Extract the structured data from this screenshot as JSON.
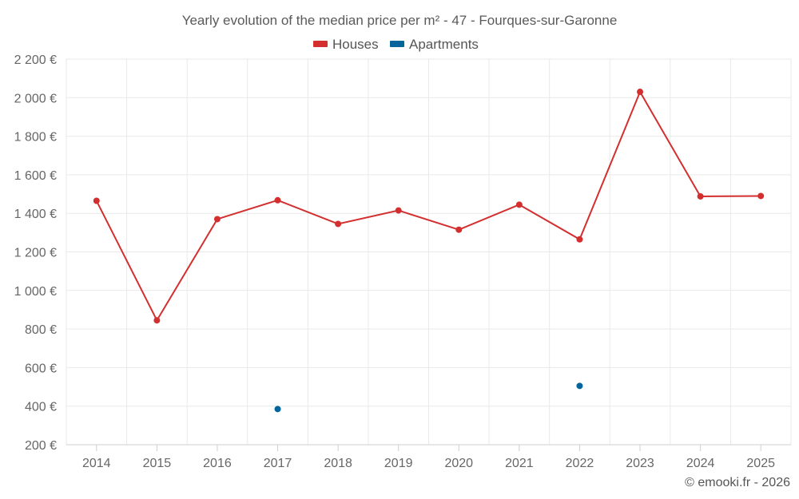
{
  "chart_data": {
    "type": "line",
    "title": "Yearly evolution of the median price per m² - 47 - Fourques-sur-Garonne",
    "categories": [
      "2014",
      "2015",
      "2016",
      "2017",
      "2018",
      "2019",
      "2020",
      "2021",
      "2022",
      "2023",
      "2024",
      "2025"
    ],
    "ylim": [
      200,
      2200
    ],
    "yticks": [
      200,
      400,
      600,
      800,
      1000,
      1200,
      1400,
      1600,
      1800,
      2000,
      2200
    ],
    "ytick_labels": [
      "200 €",
      "400 €",
      "600 €",
      "800 €",
      "1 000 €",
      "1 200 €",
      "1 400 €",
      "1 600 €",
      "1 800 €",
      "2 000 €",
      "2 200 €"
    ],
    "grid": true,
    "legend_position": "top-center",
    "series": [
      {
        "name": "Houses",
        "color": "#d32f2f",
        "values": [
          1465,
          845,
          1370,
          1468,
          1345,
          1415,
          1315,
          1445,
          1265,
          2030,
          1488,
          1490
        ]
      },
      {
        "name": "Apartments",
        "color": "#03659b",
        "values": [
          null,
          null,
          null,
          385,
          null,
          null,
          null,
          null,
          505,
          null,
          null,
          null
        ]
      }
    ],
    "credit": "© emooki.fr - 2026"
  }
}
